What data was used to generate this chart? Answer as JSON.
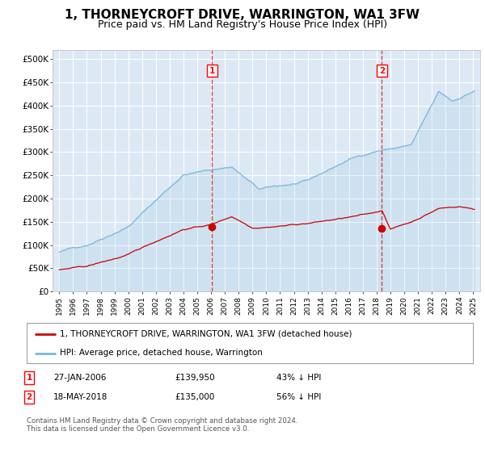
{
  "title": "1, THORNEYCROFT DRIVE, WARRINGTON, WA1 3FW",
  "subtitle": "Price paid vs. HM Land Registry's House Price Index (HPI)",
  "title_fontsize": 11,
  "subtitle_fontsize": 9,
  "ylabel_ticks": [
    "£0",
    "£50K",
    "£100K",
    "£150K",
    "£200K",
    "£250K",
    "£300K",
    "£350K",
    "£400K",
    "£450K",
    "£500K"
  ],
  "ytick_vals": [
    0,
    50000,
    100000,
    150000,
    200000,
    250000,
    300000,
    350000,
    400000,
    450000,
    500000
  ],
  "ylim": [
    0,
    520000
  ],
  "xlim_start": 1994.5,
  "xlim_end": 2025.5,
  "background_color": "#ffffff",
  "plot_bg_color": "#dce9f5",
  "grid_color": "#ffffff",
  "hpi_color": "#7ab8d9",
  "price_color": "#cc0000",
  "sale1_date": 2006.07,
  "sale1_price": 139950,
  "sale2_date": 2018.38,
  "sale2_price": 135000,
  "legend_label1": "1, THORNEYCROFT DRIVE, WARRINGTON, WA1 3FW (detached house)",
  "legend_label2": "HPI: Average price, detached house, Warrington",
  "note1_date": "27-JAN-2006",
  "note1_price": "£139,950",
  "note1_pct": "43% ↓ HPI",
  "note2_date": "18-MAY-2018",
  "note2_price": "£135,000",
  "note2_pct": "56% ↓ HPI",
  "footer": "Contains HM Land Registry data © Crown copyright and database right 2024.\nThis data is licensed under the Open Government Licence v3.0."
}
